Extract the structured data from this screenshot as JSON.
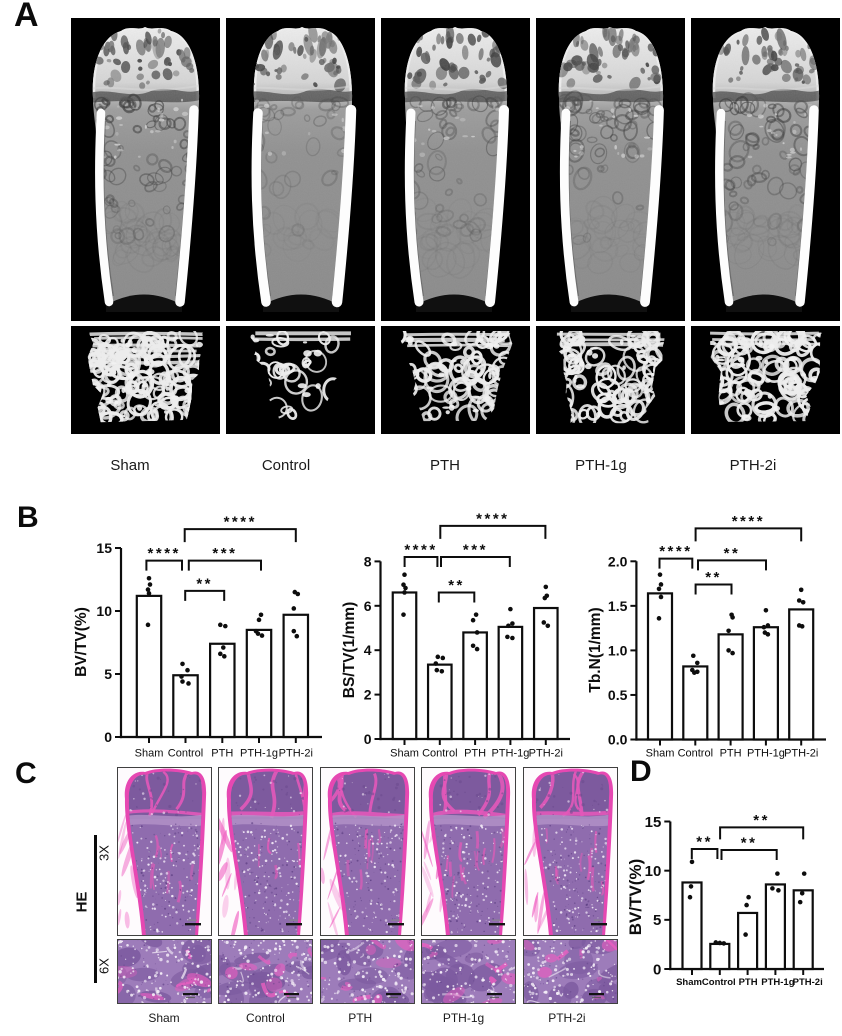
{
  "figure": {
    "groups": [
      "Sham",
      "Control",
      "PTH",
      "PTH-1g",
      "PTH-2i"
    ],
    "panel_a": {
      "label": "A",
      "rows": [
        "micro-ct-longitudinal-section",
        "trabecular-bone-3d-render"
      ],
      "groups": [
        "Sham",
        "Control",
        "PTH",
        "PTH-1g",
        "PTH-2i"
      ]
    },
    "panel_b": {
      "label": "B"
    },
    "panel_c": {
      "label": "C",
      "stain": "HE",
      "magnifications": [
        "3X",
        "6X"
      ],
      "groups": [
        "Sham",
        "Control",
        "PTH",
        "PTH-1g",
        "PTH-2i"
      ]
    },
    "panel_d": {
      "label": "D"
    }
  },
  "colors": {
    "ink": "#0d0d0d",
    "microct_background": "#000000",
    "microct_bone_gray": "#8d8d8d",
    "microct_cortical_white": "#ffffff",
    "he_pink": "#e94fb4",
    "he_purple": "#9678b6",
    "he_dark_purple": "#6b4a8e",
    "bar_fill": "#ffffff",
    "bar_stroke": "#0d0d0d"
  },
  "chart_data": [
    {
      "id": "b1",
      "type": "bar",
      "title": "",
      "xlabel": "",
      "ylabel": "BV/TV(%)",
      "categories": [
        "Sham",
        "Control",
        "PTH",
        "PTH-1g",
        "PTH-2i"
      ],
      "values": [
        11.2,
        4.9,
        7.4,
        8.5,
        9.7
      ],
      "points": [
        [
          12.6,
          12.1,
          11.7,
          11.4,
          8.9
        ],
        [
          5.8,
          5.3,
          4.8,
          4.4,
          4.25
        ],
        [
          8.9,
          8.8,
          7.1,
          6.6,
          6.4
        ],
        [
          9.7,
          9.3,
          8.4,
          8.2,
          8.05
        ],
        [
          11.5,
          11.35,
          10.2,
          8.4,
          8.0
        ]
      ],
      "point_dx": [
        [
          0,
          1,
          -1,
          0,
          -1
        ],
        [
          -3,
          2,
          -4,
          -3,
          3
        ],
        [
          -2,
          3,
          1,
          -2,
          2
        ],
        [
          2,
          0,
          -3,
          -1,
          3
        ],
        [
          -1,
          2,
          -2,
          -2,
          1
        ]
      ],
      "yticks": [
        "0",
        "5",
        "10",
        "15"
      ],
      "ylim": [
        0,
        15
      ],
      "grid": false,
      "brackets": [
        {
          "a": "Sham",
          "b": "Control",
          "stars": "****",
          "height": 14.0
        },
        {
          "a": "Control",
          "b": "PTH",
          "stars": "**",
          "height": 11.6
        },
        {
          "a": "Control",
          "b": "PTH-1g",
          "stars": "***",
          "height": 14.0
        },
        {
          "a": "Control",
          "b": "PTH-2i",
          "stars": "****",
          "height": 16.5
        }
      ]
    },
    {
      "id": "b2",
      "type": "bar",
      "title": "",
      "xlabel": "",
      "ylabel": "BS/TV(1/mm)",
      "categories": [
        "Sham",
        "Control",
        "PTH",
        "PTH-1g",
        "PTH-2i"
      ],
      "values": [
        6.6,
        3.35,
        4.8,
        5.05,
        5.9
      ],
      "points": [
        [
          7.4,
          6.95,
          6.8,
          6.6,
          5.6
        ],
        [
          3.7,
          3.65,
          3.4,
          3.1,
          3.05
        ],
        [
          5.6,
          5.35,
          4.8,
          4.2,
          4.05
        ],
        [
          5.85,
          5.2,
          5.1,
          4.6,
          4.55
        ],
        [
          6.85,
          6.45,
          6.35,
          5.25,
          5.1
        ]
      ],
      "point_dx": [
        [
          0,
          -1,
          1,
          0,
          -1
        ],
        [
          -2,
          3,
          -4,
          -3,
          2
        ],
        [
          1,
          -2,
          2,
          -2,
          2
        ],
        [
          0,
          2,
          -2,
          -3,
          2
        ],
        [
          0,
          1,
          -1,
          -2,
          2
        ]
      ],
      "yticks": [
        "0",
        "2",
        "4",
        "6",
        "8"
      ],
      "ylim": [
        0,
        8
      ],
      "grid": false,
      "brackets": [
        {
          "a": "Sham",
          "b": "Control",
          "stars": "****",
          "height": 8.2
        },
        {
          "a": "Control",
          "b": "PTH",
          "stars": "**",
          "height": 6.6
        },
        {
          "a": "Control",
          "b": "PTH-1g",
          "stars": "***",
          "height": 8.2
        },
        {
          "a": "Control",
          "b": "PTH-2i",
          "stars": "****",
          "height": 9.6
        }
      ]
    },
    {
      "id": "b3",
      "type": "bar",
      "title": "",
      "xlabel": "",
      "ylabel": "Tb.N(1/mm)",
      "categories": [
        "Sham",
        "Control",
        "PTH",
        "PTH-1g",
        "PTH-2i"
      ],
      "values": [
        1.64,
        0.82,
        1.18,
        1.26,
        1.46
      ],
      "points": [
        [
          1.85,
          1.74,
          1.69,
          1.6,
          1.36
        ],
        [
          0.94,
          0.86,
          0.78,
          0.76,
          0.75
        ],
        [
          1.4,
          1.37,
          1.22,
          1.0,
          0.97
        ],
        [
          1.45,
          1.28,
          1.26,
          1.2,
          1.18
        ],
        [
          1.68,
          1.56,
          1.54,
          1.28,
          1.27
        ]
      ],
      "point_dx": [
        [
          0,
          1,
          -1,
          1,
          -1
        ],
        [
          -2,
          2,
          -3,
          2,
          -1
        ],
        [
          1,
          2,
          -2,
          -2,
          2
        ],
        [
          0,
          2,
          -2,
          -1,
          2
        ],
        [
          0,
          -2,
          2,
          -2,
          1
        ]
      ],
      "yticks": [
        "0.0",
        "0.5",
        "1.0",
        "1.5",
        "2.0"
      ],
      "ylim": [
        0,
        2
      ],
      "grid": false,
      "brackets": [
        {
          "a": "Sham",
          "b": "Control",
          "stars": "****",
          "height": 2.03
        },
        {
          "a": "Control",
          "b": "PTH",
          "stars": "**",
          "height": 1.74
        },
        {
          "a": "Control",
          "b": "PTH-1g",
          "stars": "**",
          "height": 2.01
        },
        {
          "a": "Control",
          "b": "PTH-2i",
          "stars": "****",
          "height": 2.37
        }
      ]
    },
    {
      "id": "d1",
      "type": "bar",
      "title": "",
      "xlabel": "",
      "ylabel": "BV/TV(%)",
      "categories": [
        "Sham",
        "Control",
        "PTH",
        "PTH-1g",
        "PTH-2i"
      ],
      "values": [
        8.8,
        2.55,
        5.7,
        8.6,
        8.0
      ],
      "points": [
        [
          10.9,
          8.4,
          7.3
        ],
        [
          2.7,
          2.65,
          2.6
        ],
        [
          7.3,
          6.5,
          3.5
        ],
        [
          9.7,
          8.2,
          8.0
        ],
        [
          9.7,
          7.7,
          6.8
        ]
      ],
      "point_dx": [
        [
          0,
          -1,
          -2
        ],
        [
          -4,
          0,
          4
        ],
        [
          1,
          -1,
          -2
        ],
        [
          2,
          -3,
          3
        ],
        [
          1,
          -1,
          -3
        ]
      ],
      "yticks": [
        "0",
        "5",
        "10",
        "15"
      ],
      "ylim": [
        0,
        15
      ],
      "grid": false,
      "brackets": [
        {
          "a": "Sham",
          "b": "Control",
          "stars": "**",
          "height": 12.2
        },
        {
          "a": "Control",
          "b": "PTH-1g",
          "stars": "**",
          "height": 12.1
        },
        {
          "a": "Control",
          "b": "PTH-2i",
          "stars": "**",
          "height": 14.4
        }
      ]
    }
  ]
}
